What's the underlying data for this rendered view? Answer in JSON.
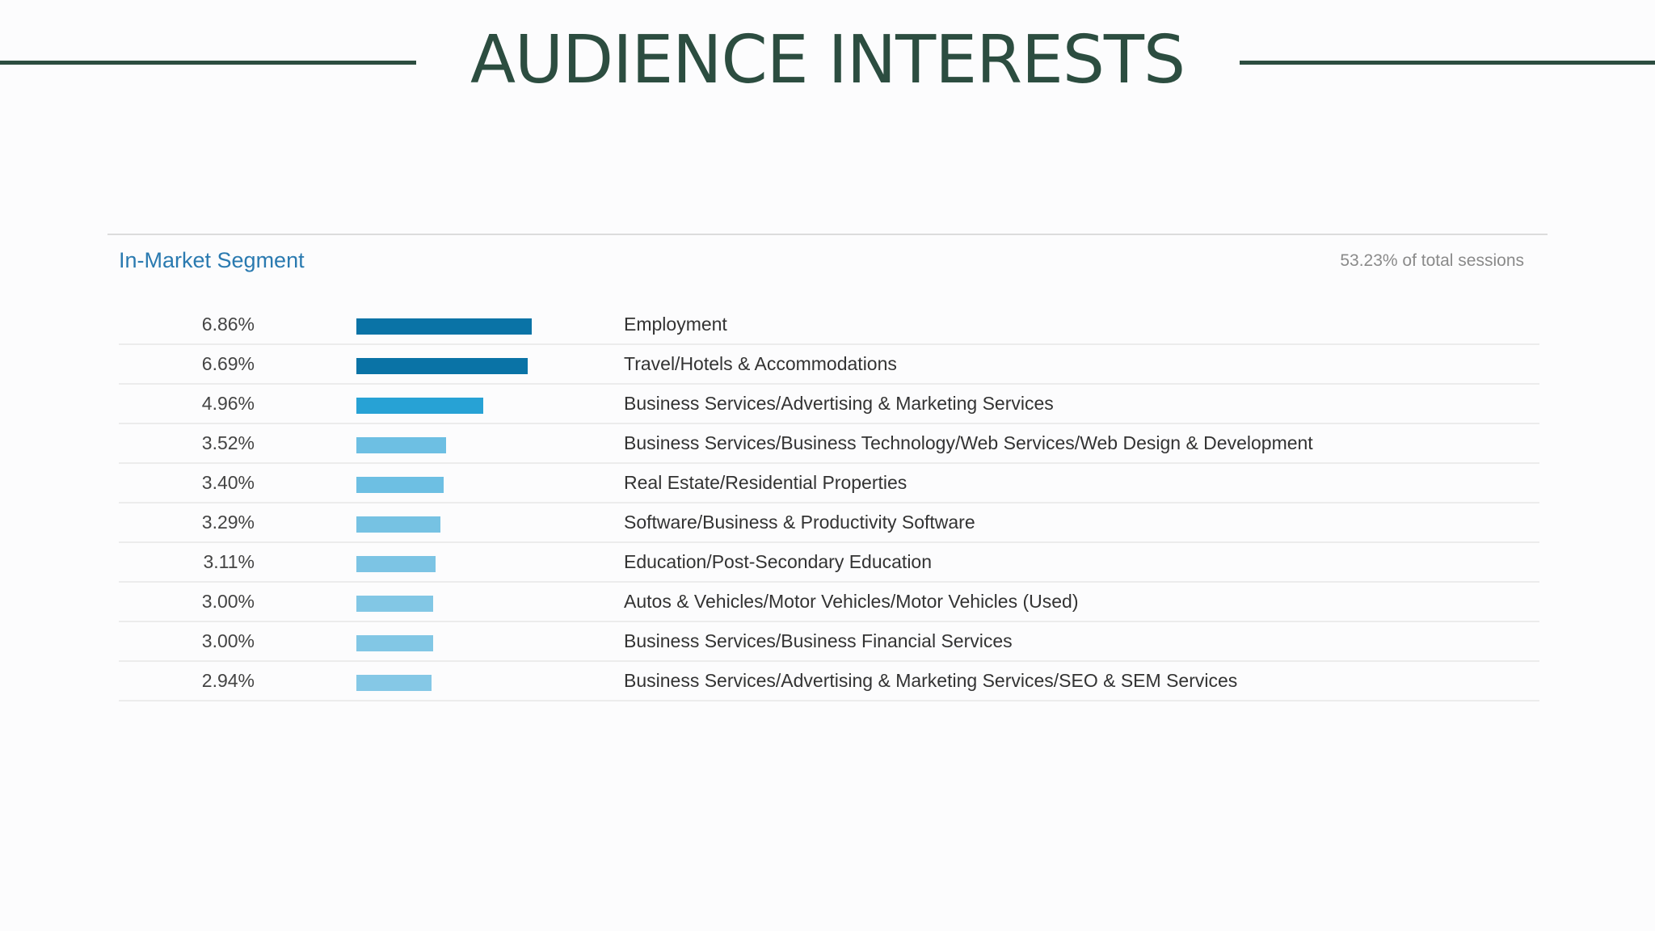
{
  "slide": {
    "title": "AUDIENCE INTERESTS"
  },
  "colors": {
    "title": "#2c4d40",
    "segment_title": "#2a7ab0",
    "bar_dark": "#0a73a6",
    "bar_mid": "#27a2d5",
    "bar_light": "#6dbfe3",
    "bar_lightest": "#85c8e6"
  },
  "chart_data": {
    "type": "bar",
    "title": "In-Market Segment",
    "subtitle": "53.23% of total sessions",
    "categories": [
      "Employment",
      "Travel/Hotels & Accommodations",
      "Business Services/Advertising & Marketing Services",
      "Business Services/Business Technology/Web Services/Web Design & Development",
      "Real Estate/Residential Properties",
      "Software/Business & Productivity Software",
      "Education/Post-Secondary Education",
      "Autos & Vehicles/Motor Vehicles/Motor Vehicles (Used)",
      "Business Services/Business Financial Services",
      "Business Services/Advertising & Marketing Services/SEO & SEM Services"
    ],
    "values": [
      6.86,
      6.69,
      4.96,
      3.52,
      3.4,
      3.29,
      3.11,
      3.0,
      3.0,
      2.94
    ],
    "value_labels": [
      "6.86%",
      "6.69%",
      "4.96%",
      "3.52%",
      "3.40%",
      "3.29%",
      "3.11%",
      "3.00%",
      "3.00%",
      "2.94%"
    ],
    "bar_colors": [
      "#0a73a6",
      "#0a73a6",
      "#27a2d5",
      "#6dbfe3",
      "#6dbfe3",
      "#76c2e3",
      "#7cc4e4",
      "#82c7e5",
      "#82c7e5",
      "#85c8e6"
    ],
    "xlim": [
      0,
      6.86
    ],
    "orientation": "horizontal",
    "grid": false
  }
}
